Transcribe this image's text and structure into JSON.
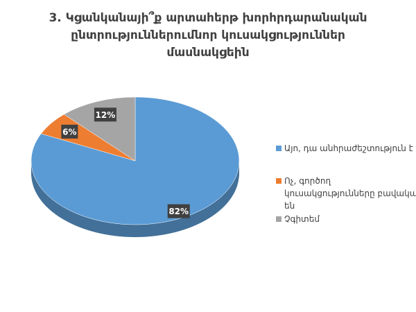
{
  "chart_data": {
    "type": "pie",
    "title": "3. Կցանկանայի՞ք արտահերթ խորհրդարանական ընտրություններումնոր կուսակցություններ մասնակցեին",
    "categories": [
      "Այո, դա անհրաժեշտություն է",
      "Ոչ, գործող կուսակցությունները բավական են",
      "Չգիտեմ"
    ],
    "values": [
      82,
      6,
      12
    ],
    "value_labels": [
      "82%",
      "6%",
      "12%"
    ],
    "colors": [
      "#5b9bd5",
      "#ed7d31",
      "#a5a5a5"
    ],
    "legend": "right"
  }
}
